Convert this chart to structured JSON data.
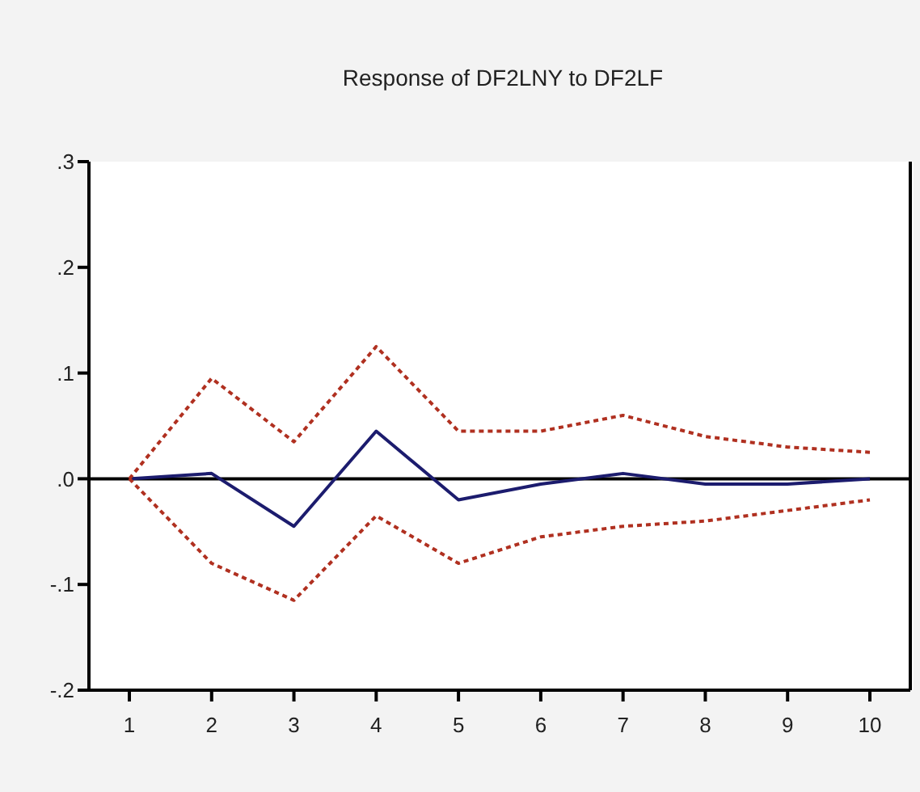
{
  "chart_data": {
    "type": "line",
    "title": "Response of DF2LNY to DF2LF",
    "categories": [
      "1",
      "2",
      "3",
      "4",
      "5",
      "6",
      "7",
      "8",
      "9",
      "10"
    ],
    "series": [
      {
        "color": "#1c1c6e",
        "line_style": "solid",
        "values": [
          0,
          0.005,
          -0.045,
          0.045,
          -0.02,
          -0.005,
          0.005,
          -0.005,
          -0.005,
          0
        ]
      },
      {
        "color": "#b03020",
        "line_style": "dotted",
        "values": [
          0,
          0.095,
          0.035,
          0.125,
          0.045,
          0.045,
          0.06,
          0.04,
          0.03,
          0.025
        ]
      },
      {
        "color": "#b03020",
        "line_style": "dotted",
        "values": [
          0,
          -0.08,
          -0.115,
          -0.035,
          -0.08,
          -0.055,
          -0.045,
          -0.04,
          -0.03,
          -0.02
        ]
      }
    ],
    "ylim": [
      -0.2,
      0.3
    ],
    "yticks": [
      {
        "value": -0.2,
        "label": "-.2"
      },
      {
        "value": -0.1,
        "label": "-.1"
      },
      {
        "value": 0,
        "label": ".0"
      },
      {
        "value": 0.1,
        "label": ".1"
      },
      {
        "value": 0.2,
        "label": ".2"
      },
      {
        "value": 0.3,
        "label": ".3"
      }
    ],
    "ref_lines": [
      {
        "axis": "y",
        "value": 0,
        "color": "#000000",
        "line_style": "solid"
      }
    ],
    "grid": false,
    "legend": false,
    "marker": "none"
  }
}
